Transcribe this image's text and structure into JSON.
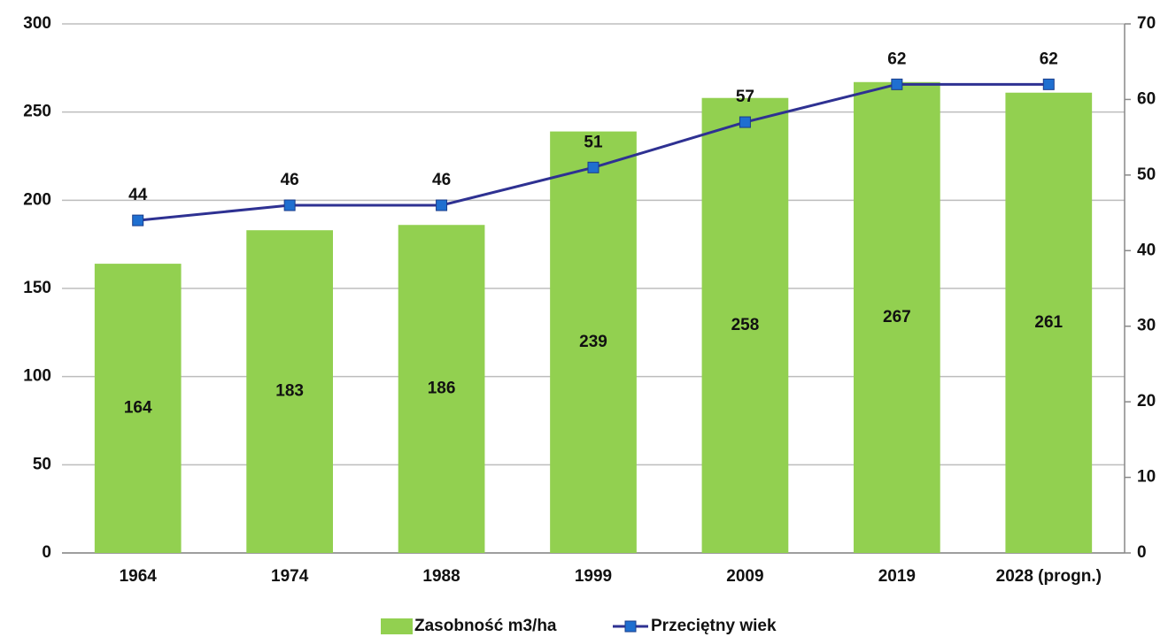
{
  "chart_data": {
    "type": "bar",
    "categories": [
      "1964",
      "1974",
      "1988",
      "1999",
      "2009",
      "2019",
      "2028 (progn.)"
    ],
    "series": [
      {
        "name": "Zasobność m3/ha",
        "type": "bar",
        "color": "#92d050",
        "values": [
          164,
          183,
          186,
          239,
          258,
          267,
          261
        ]
      },
      {
        "name": "Przeciętny wiek",
        "type": "line",
        "axis": "y2",
        "color": "#2e3192",
        "marker_color": "#1f6fd0",
        "values": [
          44,
          46,
          46,
          51,
          57,
          62,
          62
        ]
      }
    ],
    "ylim": [
      0,
      300
    ],
    "yticks": [
      0,
      50,
      100,
      150,
      200,
      250,
      300
    ],
    "y2lim": [
      0,
      70
    ],
    "y2ticks": [
      0,
      10,
      20,
      30,
      40,
      50,
      60,
      70
    ],
    "grid": true,
    "legend": "bottom"
  }
}
